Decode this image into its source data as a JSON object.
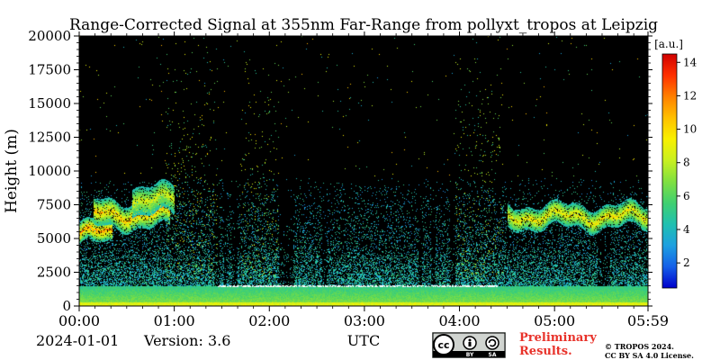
{
  "chart_data": {
    "type": "heatmap",
    "title": "Range-Corrected Signal at 355nm Far-Range from pollyxt_tropos at Leipzig",
    "xlabel": "UTC",
    "ylabel": "Height (m)",
    "x_tick_labels": [
      "00:00",
      "01:00",
      "02:00",
      "03:00",
      "04:00",
      "05:00",
      "05:59"
    ],
    "x_tick_hours": [
      0,
      1,
      2,
      3,
      4,
      5,
      5.983
    ],
    "xlim_hours": [
      0,
      5.983
    ],
    "y_ticks": [
      0,
      2500,
      5000,
      7500,
      10000,
      12500,
      15000,
      17500,
      20000
    ],
    "ylim": [
      0,
      20000
    ],
    "colorbar": {
      "unit": "[a.u.]",
      "ticks": [
        2,
        4,
        6,
        8,
        10,
        12,
        14
      ],
      "range": [
        0.5,
        14.5
      ]
    },
    "colormap": [
      "#0000cc",
      "#1560e8",
      "#1ea0e0",
      "#20c0b0",
      "#40d070",
      "#80e040",
      "#c8f020",
      "#f8f000",
      "#ffc000",
      "#ff8000",
      "#ff3000",
      "#d00000"
    ],
    "cloud_layers": [
      {
        "start_h": 0.0,
        "end_h": 0.35,
        "base_m": 4600,
        "top_m": 6200,
        "peak": 12
      },
      {
        "start_h": 0.15,
        "end_h": 0.95,
        "base_m": 5800,
        "top_m": 7800,
        "peak": 11
      },
      {
        "start_h": 0.55,
        "end_h": 1.0,
        "base_m": 6800,
        "top_m": 8900,
        "peak": 9
      },
      {
        "start_h": 4.5,
        "end_h": 5.98,
        "base_m": 5800,
        "top_m": 7500,
        "peak": 10
      }
    ],
    "boundary_layer_top_m": 1500,
    "precip_bands": [
      {
        "start_h": 0.9,
        "end_h": 1.45
      },
      {
        "start_h": 1.7,
        "end_h": 2.1
      },
      {
        "start_h": 3.95,
        "end_h": 4.45
      }
    ]
  },
  "footer": {
    "date": "2024-01-01",
    "version": "Version: 3.6",
    "preliminary_line1": "Preliminary",
    "preliminary_line2": "Results.",
    "copyright_line1": "© TROPOS 2024.",
    "copyright_line2": "CC BY SA 4.0 License.",
    "cc_badge": [
      "cc",
      "BY",
      "SA"
    ]
  }
}
